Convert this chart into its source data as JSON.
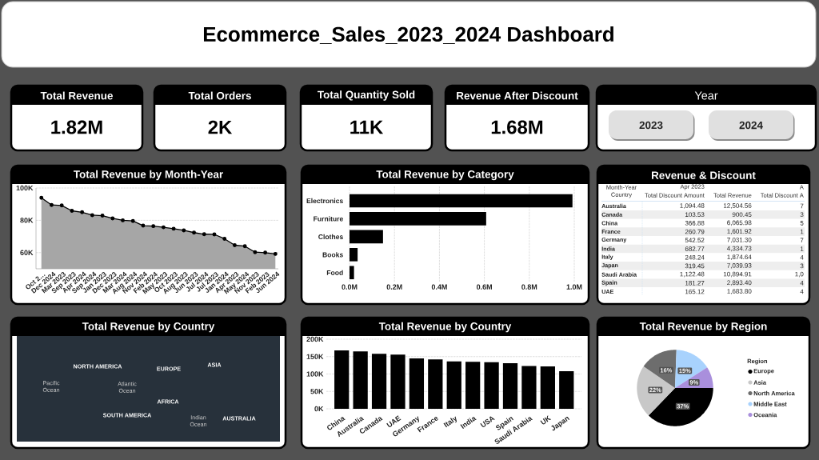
{
  "chart_data": [
    {
      "type": "other",
      "title": "Ecommerce_Sales_2023_2024 Dashboard"
    },
    {
      "type": "other",
      "title": "Total Revenue",
      "annotations": [
        "1.82M"
      ]
    },
    {
      "type": "other",
      "title": "Total Orders",
      "annotations": [
        "2K"
      ]
    },
    {
      "type": "other",
      "title": "Total Quantity Sold",
      "annotations": [
        "11K"
      ]
    },
    {
      "type": "other",
      "title": "Revenue After Discount",
      "annotations": [
        "1.68M"
      ]
    },
    {
      "type": "other",
      "title": "Year",
      "annotations": [
        "2023",
        "2024"
      ]
    },
    {
      "type": "area",
      "title": "Total Revenue by Month-Year",
      "categories": [
        "Oct 2…",
        "Dec 2024",
        "Mar 2023",
        "Sep 2023",
        "Apr 2024",
        "Sep 2024",
        "Jan 2023",
        "Dec 2023",
        "Mar 2024",
        "Aug 2024",
        "Nov 2024",
        "Feb 2024",
        "May 2023",
        "Oct 2023",
        "Aug 2023",
        "Jun 2023",
        "Jul 2024",
        "Jul 2023",
        "Jan 2024",
        "Apr 2023",
        "May 2024",
        "Nov 2023",
        "Feb 2023",
        "Jun 2024"
      ],
      "series": [
        {
          "color": "#000000",
          "values": [
            93900,
            89500,
            89200,
            85900,
            85000,
            83200,
            82900,
            81200,
            80000,
            79600,
            76700,
            76400,
            75700,
            74800,
            73800,
            72400,
            71400,
            71300,
            68600,
            64600,
            64000,
            60300,
            60000,
            59200
          ]
        }
      ],
      "ylim": [
        50000,
        100000
      ],
      "yticks": [
        {
          "value": 60000,
          "label": "60K"
        },
        {
          "value": 80000,
          "label": "80K"
        },
        {
          "value": 100000,
          "label": "100K"
        }
      ],
      "grid": "y",
      "marker": "circle",
      "line_style": "solid"
    },
    {
      "type": "bar",
      "orientation": "horizontal",
      "title": "Total Revenue by Category",
      "categories": [
        "Electronics",
        "Furniture",
        "Clothes",
        "Books",
        "Food"
      ],
      "values": [
        992000,
        608000,
        149000,
        36000,
        20000
      ],
      "color": "#000000",
      "xlim": [
        0,
        1000000
      ],
      "xticks": [
        {
          "value": 0,
          "label": "0.0M"
        },
        {
          "value": 200000,
          "label": "0.2M"
        },
        {
          "value": 400000,
          "label": "0.4M"
        },
        {
          "value": 600000,
          "label": "0.6M"
        },
        {
          "value": 800000,
          "label": "0.8M"
        },
        {
          "value": 1000000,
          "label": "1.0M"
        }
      ],
      "grid": "x"
    },
    {
      "type": "other",
      "title": "Revenue & Discount",
      "annotations": [
        "Month-Year",
        "Apr 2023",
        "A",
        "Country",
        "Total Discount Amount",
        "Total Revenue",
        "Total Discount A",
        "Australia",
        "1,094.48",
        "12,504.56",
        "7",
        "Canada",
        "103.53",
        "900.45",
        "3",
        "China",
        "366.88",
        "6,065.98",
        "5",
        "France",
        "260.79",
        "1,601.92",
        "1",
        "Germany",
        "542.52",
        "7,031.30",
        "7",
        "India",
        "682.77",
        "4,334.73",
        "1",
        "Italy",
        "248.24",
        "1,874.64",
        "4",
        "Japan",
        "319.45",
        "7,039.93",
        "3",
        "Saudi Arabia",
        "1,122.48",
        "10,894.91",
        "1,0",
        "Spain",
        "181.27",
        "2,893.40",
        "4",
        "UAE",
        "165.12",
        "1,683.80",
        "4"
      ]
    },
    {
      "type": "other",
      "title": "Total Revenue by Country",
      "annotations": [
        "NORTH AMERICA",
        "EUROPE",
        "ASIA",
        "Pacific Ocean",
        "Atlantic Ocean",
        "AFRICA",
        "SOUTH AMERICA",
        "Indian Ocean",
        "AUSTRALIA"
      ]
    },
    {
      "type": "bar",
      "title": "Total Revenue by Country",
      "categories": [
        "China",
        "Australia",
        "Canada",
        "UAE",
        "Germany",
        "France",
        "Italy",
        "India",
        "USA",
        "Spain",
        "Saudi Arabia",
        "UK",
        "Japan"
      ],
      "values": [
        168000,
        165000,
        158000,
        156000,
        145000,
        142000,
        136000,
        135000,
        134000,
        131000,
        123000,
        122000,
        108000
      ],
      "color": "#000000",
      "ylim": [
        0,
        200000
      ],
      "yticks": [
        {
          "value": 0,
          "label": "0K"
        },
        {
          "value": 50000,
          "label": "50K"
        },
        {
          "value": 100000,
          "label": "100K"
        },
        {
          "value": 150000,
          "label": "150K"
        },
        {
          "value": 200000,
          "label": "200K"
        }
      ],
      "grid": "y"
    },
    {
      "type": "pie",
      "title": "Total Revenue by Region",
      "legend_title": "Region",
      "categories": [
        "Europe",
        "Asia",
        "North America",
        "Middle East",
        "Oceania"
      ],
      "values": [
        37.2,
        22.4,
        16.0,
        15.3,
        9.1
      ],
      "value_labels": [
        "37%",
        "22%",
        "16%",
        "15%",
        "9%"
      ],
      "colors": [
        "#000000",
        "#c8c8c8",
        "#6d6d6d",
        "#a8d2fd",
        "#a98fdc"
      ],
      "legend": "right"
    }
  ]
}
